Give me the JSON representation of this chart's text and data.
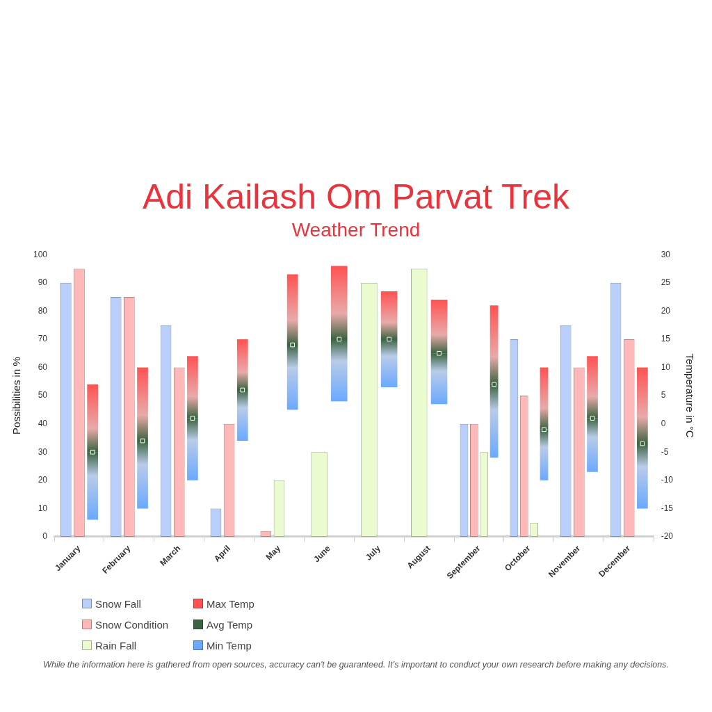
{
  "chart_data": {
    "type": "bar",
    "title": "Adi Kailash Om Parvat Trek",
    "subtitle": "Weather Trend",
    "ylabel": "Possibilities in %",
    "y2label": "Temperature in °C",
    "categories": [
      "January",
      "February",
      "March",
      "April",
      "May",
      "June",
      "July",
      "August",
      "September",
      "October",
      "November",
      "December"
    ],
    "series": [
      {
        "name": "Snow Fall",
        "color": "#b7cffa",
        "values": [
          90,
          85,
          75,
          10,
          null,
          null,
          null,
          null,
          40,
          70,
          75,
          90
        ]
      },
      {
        "name": "Snow Condition",
        "color": "#ffb8b8",
        "values": [
          95,
          85,
          60,
          40,
          2,
          null,
          null,
          null,
          40,
          50,
          60,
          70
        ]
      },
      {
        "name": "Rain Fall",
        "color": "#eafbcf",
        "values": [
          null,
          null,
          null,
          null,
          20,
          30,
          90,
          95,
          30,
          5,
          null,
          null
        ]
      },
      {
        "name": "Max Temp",
        "axis": "y2",
        "color": "#ff5252",
        "base": [
          -5,
          -3,
          1,
          6,
          14,
          15,
          15,
          12.5,
          7,
          -1,
          1,
          -3.5
        ],
        "values": [
          12,
          13,
          11,
          9,
          12.5,
          13,
          8.5,
          9.5,
          14,
          11,
          11,
          13.5
        ]
      },
      {
        "name": "Avg Temp",
        "type": "scatter",
        "axis": "y2",
        "color": "#3b6340",
        "values": [
          -5,
          -3,
          1,
          6,
          14,
          15,
          15,
          12.5,
          7,
          -1,
          1,
          -3.5
        ]
      },
      {
        "name": "Min Temp",
        "axis": "y2",
        "color": "#6aa9ff",
        "base": [
          -17,
          -15,
          -10,
          -3,
          2.5,
          4,
          6.5,
          3.5,
          -6,
          -10,
          -8.5,
          -15
        ],
        "values": [
          12,
          12,
          11,
          9,
          11.5,
          11,
          8.5,
          9,
          13,
          9,
          9.5,
          11.5
        ]
      }
    ],
    "ylim": [
      0,
      100
    ],
    "yticks": [
      0,
      10,
      20,
      30,
      40,
      50,
      60,
      70,
      80,
      90,
      100
    ],
    "y2lim": [
      -20,
      30
    ],
    "y2ticks": [
      -20,
      -15,
      -10,
      -5,
      0,
      5,
      10,
      15,
      20,
      25,
      30
    ],
    "grid": false,
    "legend": "bottom left",
    "marker": "square",
    "annotations": [
      "While the information here is gathered from open sources, accuracy can't be guaranteed. It's important to conduct your own research before making any decisions."
    ]
  }
}
